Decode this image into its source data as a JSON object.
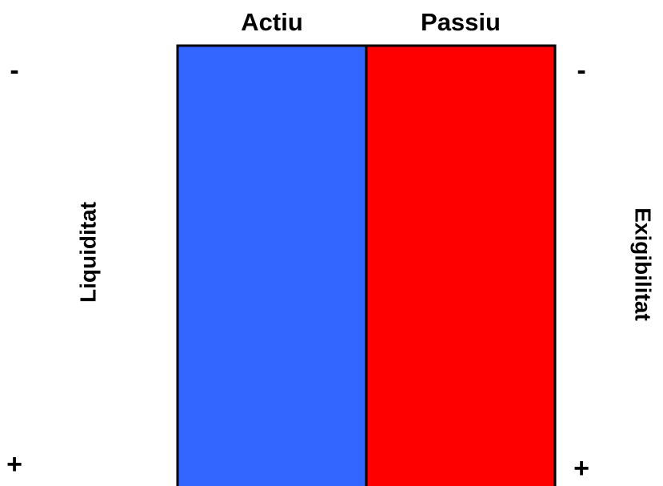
{
  "columns": [
    {
      "label": "Actiu"
    },
    {
      "label": "Passiu"
    }
  ],
  "left_axis": {
    "label": "Liquiditat",
    "top": "-",
    "bottom": "+"
  },
  "right_axis": {
    "label": "Exigibilitat",
    "top": "-",
    "bottom": "+"
  }
}
